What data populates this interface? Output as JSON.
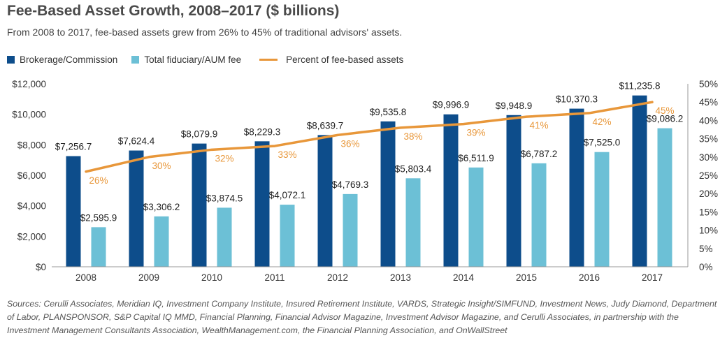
{
  "title": "Fee-Based Asset Growth, 2008–2017 ($ billions)",
  "subtitle": "From 2008 to 2017, fee-based assets grew from 26% to 45% of traditional advisors' assets.",
  "legend": {
    "brokerage": "Brokerage/Commission",
    "fiduciary": "Total fiduciary/AUM fee",
    "percent": "Percent of fee-based assets"
  },
  "colors": {
    "brokerage": "#0d4d8b",
    "fiduciary": "#6cc0d6",
    "percent": "#e8973a",
    "axis": "#999999"
  },
  "sources": "Sources: Cerulli Associates, Meridian IQ, Investment Company Institute, Insured Retirement Institute, VARDS, Strategic Insight/SIMFUND, Investment News, Judy Diamond, Department of Labor, PLANSPONSOR, S&P Capital IQ MMD, Financial Planning, Financial Advisor Magazine, Investment Advisor Magazine, and Cerulli Associates, in partnership with the Investment Management Consultants Association, WealthManagement.com, the Financial Planning Association, and OnWallStreet",
  "chart_data": {
    "type": "bar",
    "categories": [
      "2008",
      "2009",
      "2010",
      "2011",
      "2012",
      "2013",
      "2014",
      "2015",
      "2016",
      "2017"
    ],
    "series": [
      {
        "name": "Brokerage/Commission",
        "type": "bar",
        "values": [
          7256.7,
          7624.4,
          8079.9,
          8229.3,
          8639.7,
          9535.8,
          9996.9,
          9948.9,
          10370.3,
          11235.8
        ],
        "labels": [
          "$7,256.7",
          "$7,624.4",
          "$8,079.9",
          "$8,229.3",
          "$8,639.7",
          "$9,535.8",
          "$9,996.9",
          "$9,948.9",
          "$10,370.3",
          "$11,235.8"
        ]
      },
      {
        "name": "Total fiduciary/AUM fee",
        "type": "bar",
        "values": [
          2595.9,
          3306.2,
          3874.5,
          4072.1,
          4769.3,
          5803.4,
          6511.9,
          6787.2,
          7525.0,
          9086.2
        ],
        "labels": [
          "$2,595.9",
          "$3,306.2",
          "$3,874.5",
          "$4,072.1",
          "$4,769.3",
          "$5,803.4",
          "$6,511.9",
          "$6,787.2",
          "$7,525.0",
          "$9,086.2"
        ]
      },
      {
        "name": "Percent of fee-based assets",
        "type": "line",
        "axis": "right",
        "values": [
          26,
          30,
          32,
          33,
          36,
          38,
          39,
          41,
          42,
          45
        ],
        "labels": [
          "26%",
          "30%",
          "32%",
          "33%",
          "36%",
          "38%",
          "39%",
          "41%",
          "42%",
          "45%"
        ]
      }
    ],
    "ylim": [
      0,
      12000
    ],
    "yticks": [
      "$0",
      "$2,000",
      "$4,000",
      "$6,000",
      "$8,000",
      "$10,000",
      "$12,000"
    ],
    "y2lim": [
      0,
      50
    ],
    "y2ticks": [
      "0%",
      "5%",
      "10%",
      "15%",
      "20%",
      "25%",
      "30%",
      "35%",
      "40%",
      "45%",
      "50%"
    ],
    "grid": false,
    "legend_position": "top-left"
  }
}
